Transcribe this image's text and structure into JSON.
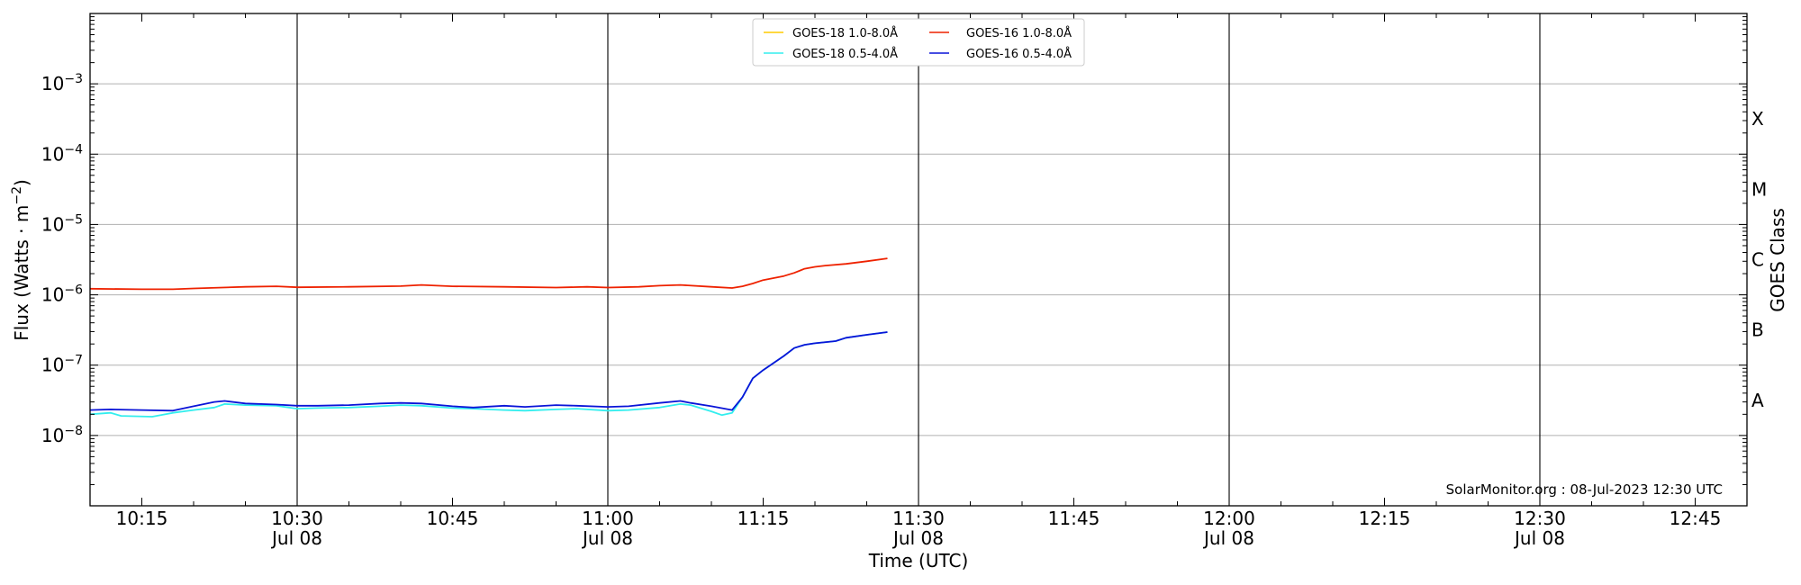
{
  "chart_data": {
    "type": "line",
    "xlabel": "Time (UTC)",
    "ylabel": "Flux (Watts · m",
    "ylabel_sup": "−2",
    "ylabel_close": ")",
    "right_axis_label": "GOES Class",
    "y_scale": "log",
    "ylim": [
      1e-09,
      0.01
    ],
    "xlim": [
      "10:10",
      "12:50"
    ],
    "y_ticks": [
      {
        "value": 1e-08,
        "label": "10",
        "exp": "−8"
      },
      {
        "value": 1e-07,
        "label": "10",
        "exp": "−7"
      },
      {
        "value": 1e-06,
        "label": "10",
        "exp": "−6"
      },
      {
        "value": 1e-05,
        "label": "10",
        "exp": "−5"
      },
      {
        "value": 0.0001,
        "label": "10",
        "exp": "−4"
      },
      {
        "value": 0.001,
        "label": "10",
        "exp": "−3"
      }
    ],
    "x_ticks": [
      {
        "time": "10:15",
        "label": "10:15",
        "sub": ""
      },
      {
        "time": "10:30",
        "label": "10:30",
        "sub": "Jul 08"
      },
      {
        "time": "10:45",
        "label": "10:45",
        "sub": ""
      },
      {
        "time": "11:00",
        "label": "11:00",
        "sub": "Jul 08"
      },
      {
        "time": "11:15",
        "label": "11:15",
        "sub": ""
      },
      {
        "time": "11:30",
        "label": "11:30",
        "sub": "Jul 08"
      },
      {
        "time": "11:45",
        "label": "11:45",
        "sub": ""
      },
      {
        "time": "12:00",
        "label": "12:00",
        "sub": "Jul 08"
      },
      {
        "time": "12:15",
        "label": "12:15",
        "sub": ""
      },
      {
        "time": "12:30",
        "label": "12:30",
        "sub": "Jul 08"
      },
      {
        "time": "12:45",
        "label": "12:45",
        "sub": ""
      }
    ],
    "class_labels": [
      {
        "label": "A",
        "value": 3.16e-08
      },
      {
        "label": "B",
        "value": 3.16e-07
      },
      {
        "label": "C",
        "value": 3.16e-06
      },
      {
        "label": "M",
        "value": 3.16e-05
      },
      {
        "label": "X",
        "value": 0.000316
      }
    ],
    "horizontal_gridlines": [
      1e-08,
      1e-07,
      1e-06,
      1e-05,
      0.0001,
      0.001
    ],
    "vertical_lines": [
      "10:30",
      "11:00",
      "11:30",
      "12:00",
      "12:30"
    ],
    "annotation": "SolarMonitor.org : 08-Jul-2023 12:30 UTC",
    "legend_placement": "top-center",
    "series": [
      {
        "name": "GOES-18 1.0-8.0Å",
        "color": "#ffcc00",
        "points": []
      },
      {
        "name": "GOES-16 1.0-8.0Å",
        "color": "#ee2200",
        "points": [
          [
            "10:10",
            1.22e-06
          ],
          [
            "10:15",
            1.2e-06
          ],
          [
            "10:18",
            1.2e-06
          ],
          [
            "10:20",
            1.23e-06
          ],
          [
            "10:25",
            1.3e-06
          ],
          [
            "10:28",
            1.32e-06
          ],
          [
            "10:30",
            1.28e-06
          ],
          [
            "10:35",
            1.3e-06
          ],
          [
            "10:40",
            1.33e-06
          ],
          [
            "10:42",
            1.38e-06
          ],
          [
            "10:45",
            1.32e-06
          ],
          [
            "10:50",
            1.3e-06
          ],
          [
            "10:55",
            1.27e-06
          ],
          [
            "10:58",
            1.3e-06
          ],
          [
            "11:00",
            1.27e-06
          ],
          [
            "11:03",
            1.3e-06
          ],
          [
            "11:05",
            1.35e-06
          ],
          [
            "11:07",
            1.38e-06
          ],
          [
            "11:10",
            1.3e-06
          ],
          [
            "11:12",
            1.25e-06
          ],
          [
            "11:13",
            1.32e-06
          ],
          [
            "11:14",
            1.45e-06
          ],
          [
            "11:15",
            1.62e-06
          ],
          [
            "11:17",
            1.85e-06
          ],
          [
            "11:18",
            2.05e-06
          ],
          [
            "11:19",
            2.35e-06
          ],
          [
            "11:20",
            2.5e-06
          ],
          [
            "11:21",
            2.6e-06
          ],
          [
            "11:23",
            2.75e-06
          ],
          [
            "11:25",
            3e-06
          ],
          [
            "11:27",
            3.3e-06
          ]
        ]
      },
      {
        "name": "GOES-18 0.5-4.0Å",
        "color": "#33eeee",
        "points": [
          [
            "10:10",
            2e-08
          ],
          [
            "10:12",
            2.1e-08
          ],
          [
            "10:13",
            1.9e-08
          ],
          [
            "10:16",
            1.85e-08
          ],
          [
            "10:18",
            2.1e-08
          ],
          [
            "10:20",
            2.3e-08
          ],
          [
            "10:22",
            2.5e-08
          ],
          [
            "10:23",
            2.8e-08
          ],
          [
            "10:25",
            2.7e-08
          ],
          [
            "10:28",
            2.65e-08
          ],
          [
            "10:30",
            2.4e-08
          ],
          [
            "10:32",
            2.45e-08
          ],
          [
            "10:35",
            2.5e-08
          ],
          [
            "10:38",
            2.6e-08
          ],
          [
            "10:40",
            2.7e-08
          ],
          [
            "10:42",
            2.65e-08
          ],
          [
            "10:45",
            2.45e-08
          ],
          [
            "10:47",
            2.4e-08
          ],
          [
            "10:50",
            2.3e-08
          ],
          [
            "10:52",
            2.25e-08
          ],
          [
            "10:55",
            2.35e-08
          ],
          [
            "10:57",
            2.4e-08
          ],
          [
            "11:00",
            2.25e-08
          ],
          [
            "11:02",
            2.3e-08
          ],
          [
            "11:05",
            2.5e-08
          ],
          [
            "11:07",
            2.8e-08
          ],
          [
            "11:08",
            2.7e-08
          ],
          [
            "11:10",
            2.2e-08
          ],
          [
            "11:11",
            1.95e-08
          ],
          [
            "11:12",
            2.1e-08
          ],
          [
            "11:13",
            3.5e-08
          ],
          [
            "11:14",
            6.5e-08
          ],
          [
            "11:15",
            8.5e-08
          ],
          [
            "11:17",
            1.35e-07
          ],
          [
            "11:18",
            1.75e-07
          ],
          [
            "11:19",
            1.95e-07
          ],
          [
            "11:20",
            2.05e-07
          ],
          [
            "11:22",
            2.2e-07
          ],
          [
            "11:23",
            2.45e-07
          ],
          [
            "11:25",
            2.7e-07
          ],
          [
            "11:27",
            2.95e-07
          ]
        ]
      },
      {
        "name": "GOES-16 0.5-4.0Å",
        "color": "#0a14d8",
        "points": [
          [
            "10:10",
            2.3e-08
          ],
          [
            "10:12",
            2.35e-08
          ],
          [
            "10:15",
            2.3e-08
          ],
          [
            "10:18",
            2.25e-08
          ],
          [
            "10:20",
            2.6e-08
          ],
          [
            "10:22",
            3e-08
          ],
          [
            "10:23",
            3.1e-08
          ],
          [
            "10:25",
            2.85e-08
          ],
          [
            "10:28",
            2.75e-08
          ],
          [
            "10:30",
            2.65e-08
          ],
          [
            "10:32",
            2.65e-08
          ],
          [
            "10:35",
            2.7e-08
          ],
          [
            "10:38",
            2.85e-08
          ],
          [
            "10:40",
            2.9e-08
          ],
          [
            "10:42",
            2.85e-08
          ],
          [
            "10:45",
            2.6e-08
          ],
          [
            "10:47",
            2.5e-08
          ],
          [
            "10:50",
            2.65e-08
          ],
          [
            "10:52",
            2.55e-08
          ],
          [
            "10:55",
            2.7e-08
          ],
          [
            "10:57",
            2.65e-08
          ],
          [
            "11:00",
            2.55e-08
          ],
          [
            "11:02",
            2.6e-08
          ],
          [
            "11:05",
            2.9e-08
          ],
          [
            "11:07",
            3.1e-08
          ],
          [
            "11:08",
            2.9e-08
          ],
          [
            "11:10",
            2.6e-08
          ],
          [
            "11:12",
            2.3e-08
          ],
          [
            "11:13",
            3.5e-08
          ],
          [
            "11:14",
            6.5e-08
          ],
          [
            "11:15",
            8.5e-08
          ],
          [
            "11:17",
            1.35e-07
          ],
          [
            "11:18",
            1.75e-07
          ],
          [
            "11:19",
            1.95e-07
          ],
          [
            "11:20",
            2.05e-07
          ],
          [
            "11:22",
            2.2e-07
          ],
          [
            "11:23",
            2.45e-07
          ],
          [
            "11:25",
            2.7e-07
          ],
          [
            "11:27",
            2.95e-07
          ]
        ]
      }
    ]
  }
}
